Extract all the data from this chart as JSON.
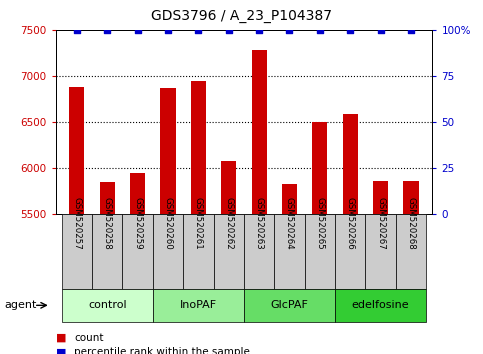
{
  "title": "GDS3796 / A_23_P104387",
  "samples": [
    "GSM520257",
    "GSM520258",
    "GSM520259",
    "GSM520260",
    "GSM520261",
    "GSM520262",
    "GSM520263",
    "GSM520264",
    "GSM520265",
    "GSM520266",
    "GSM520267",
    "GSM520268"
  ],
  "bar_values": [
    6880,
    5850,
    5950,
    6870,
    6950,
    6080,
    7280,
    5830,
    6500,
    6590,
    5860,
    5860
  ],
  "percentile_values": [
    100,
    100,
    100,
    100,
    100,
    100,
    100,
    100,
    100,
    100,
    100,
    100
  ],
  "bar_color": "#cc0000",
  "dot_color": "#0000cc",
  "ylim_left": [
    5500,
    7500
  ],
  "ylim_right": [
    0,
    100
  ],
  "yticks_left": [
    5500,
    6000,
    6500,
    7000,
    7500
  ],
  "yticks_right": [
    0,
    25,
    50,
    75,
    100
  ],
  "ytick_labels_right": [
    "0",
    "25",
    "50",
    "75",
    "100%"
  ],
  "groups": [
    {
      "label": "control",
      "start": 0,
      "end": 3,
      "color": "#ccffcc"
    },
    {
      "label": "InoPAF",
      "start": 3,
      "end": 6,
      "color": "#99ee99"
    },
    {
      "label": "GlcPAF",
      "start": 6,
      "end": 9,
      "color": "#66dd66"
    },
    {
      "label": "edelfosine",
      "start": 9,
      "end": 12,
      "color": "#33cc33"
    }
  ],
  "agent_label": "agent",
  "bar_color_legend": "#cc0000",
  "dot_color_legend": "#0000cc",
  "tick_label_color_left": "#cc0000",
  "tick_label_color_right": "#0000cc",
  "sample_bg_color": "#cccccc",
  "title_fontsize": 10,
  "bar_width": 0.5,
  "xlim": [
    -0.7,
    11.7
  ]
}
